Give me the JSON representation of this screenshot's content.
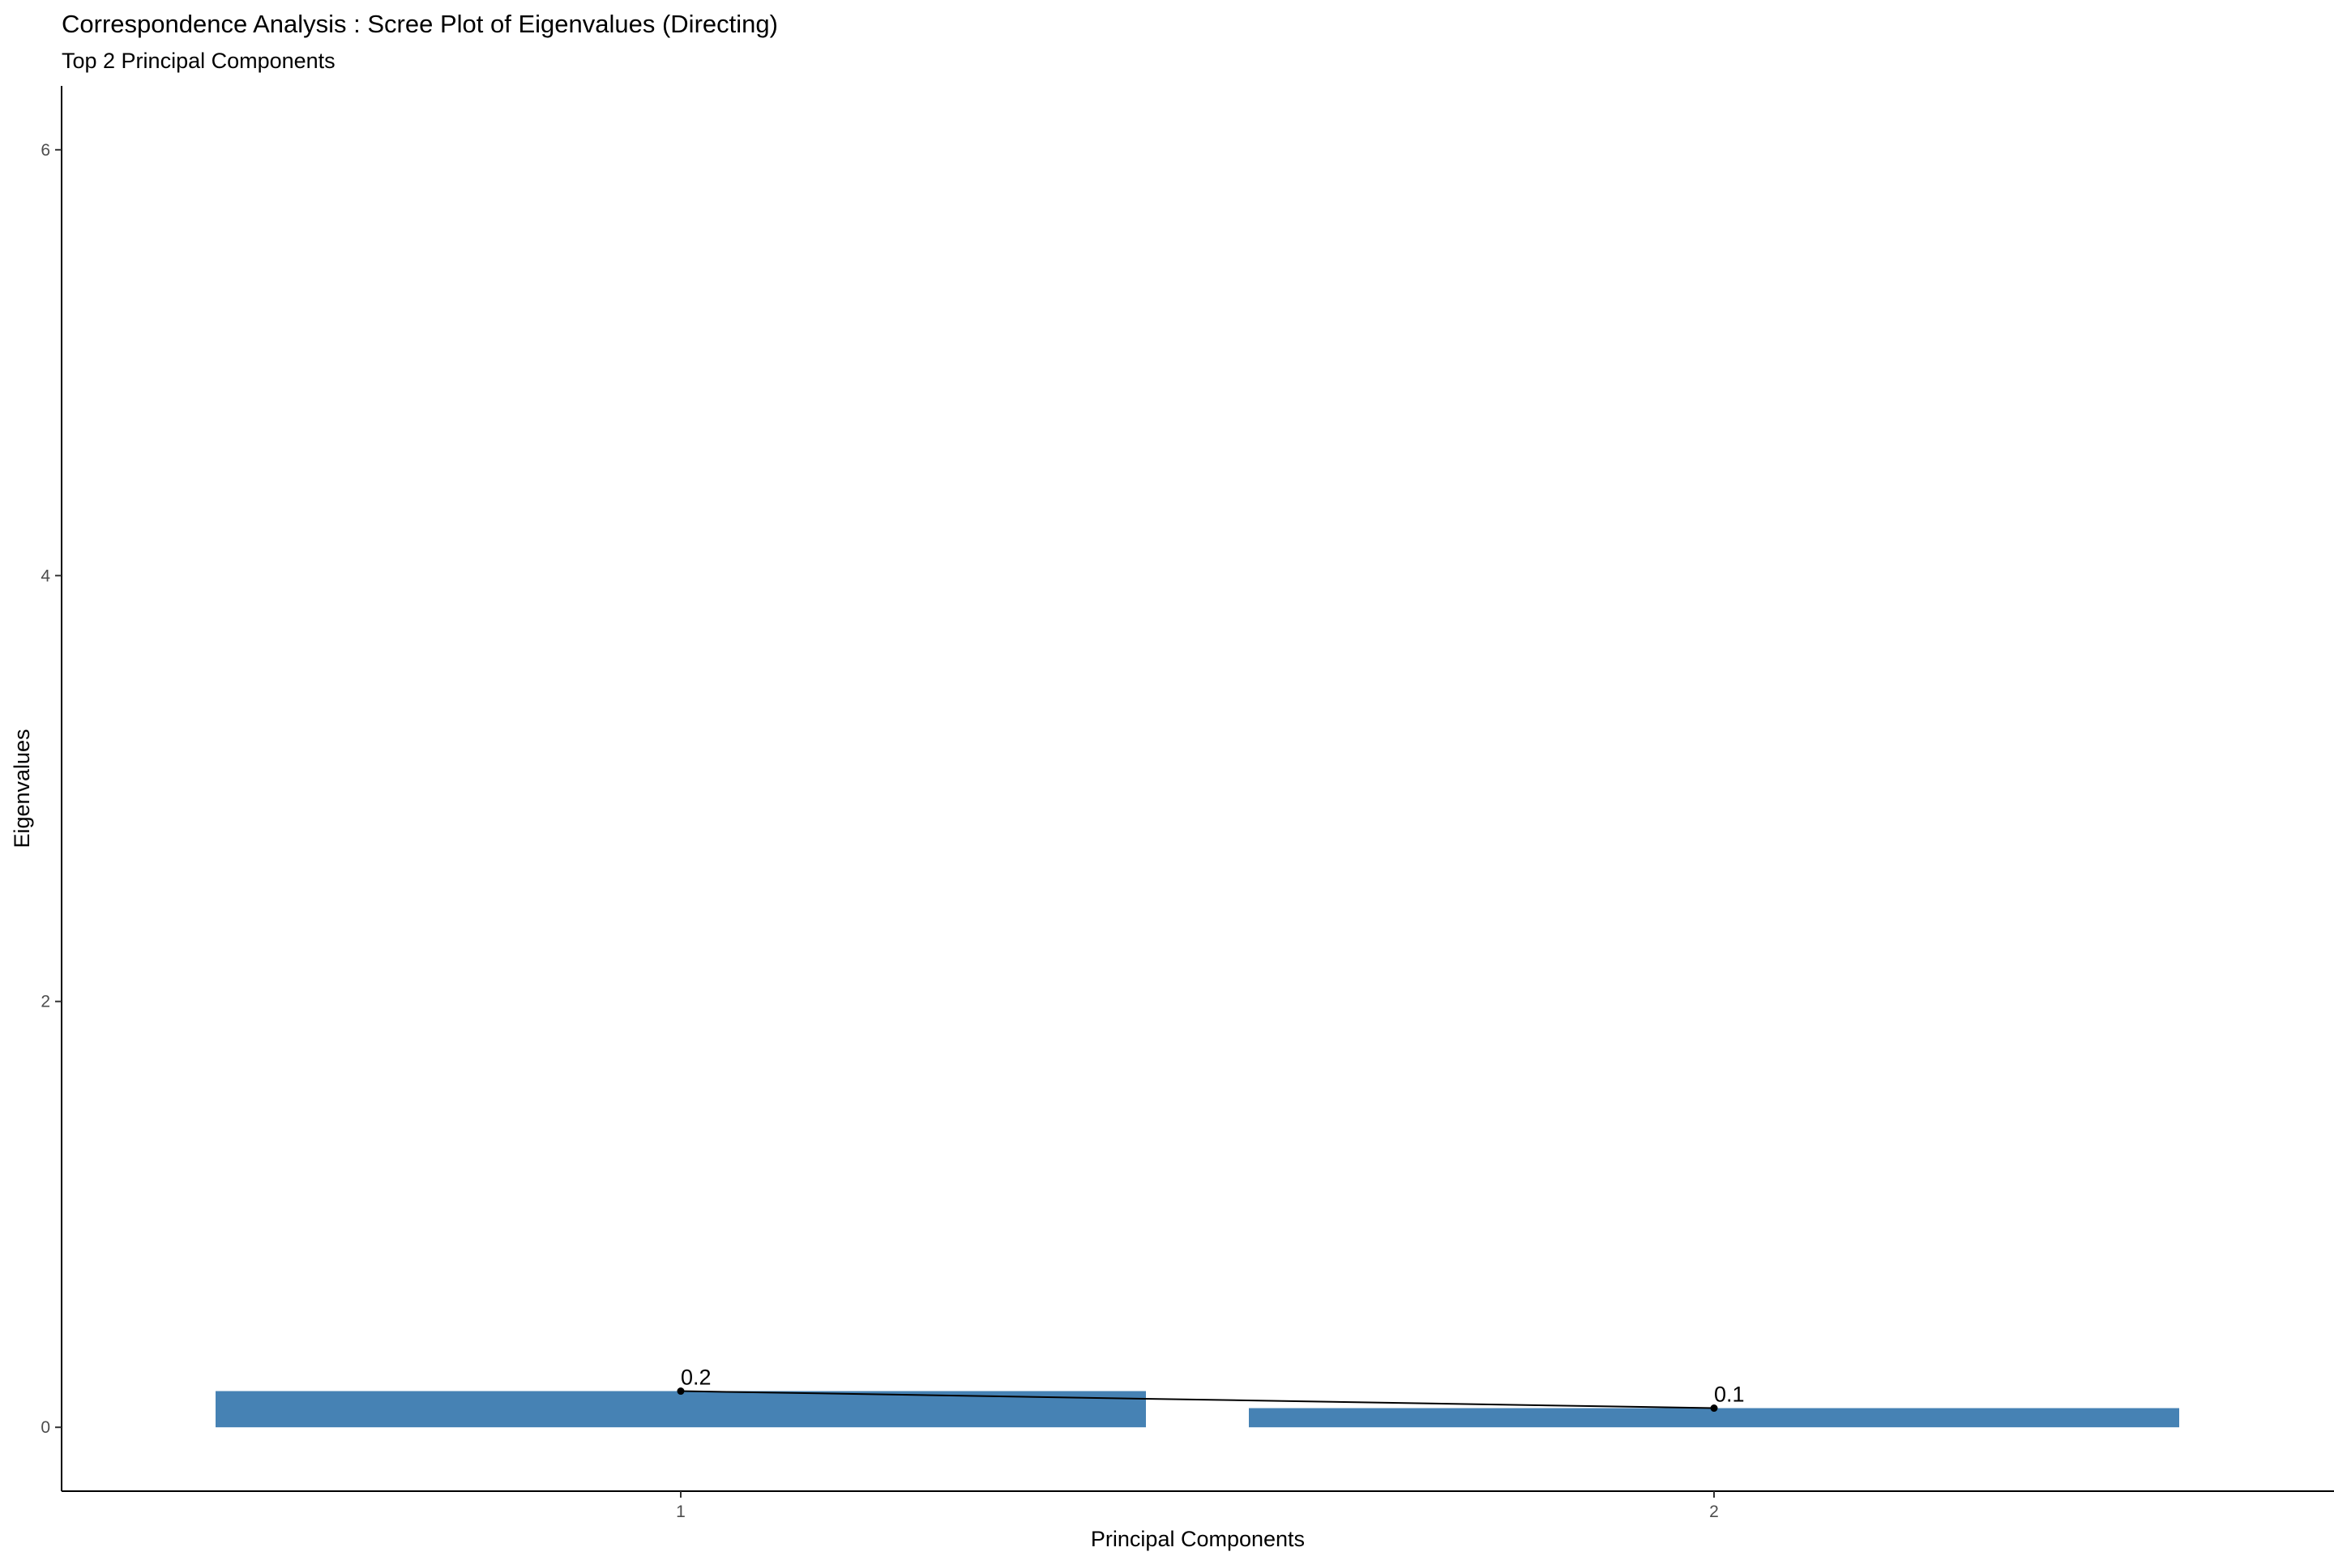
{
  "chart_data": {
    "type": "bar",
    "title": "Correspondence Analysis : Scree Plot of Eigenvalues (Directing)",
    "subtitle": "Top 2 Principal Components",
    "xlabel": "Principal Components",
    "ylabel": "Eigenvalues",
    "categories": [
      "1",
      "2"
    ],
    "values": [
      0.17,
      0.09
    ],
    "data_labels": [
      "0.2",
      "0.1"
    ],
    "line_overlay": true,
    "ylim": [
      -0.3,
      6.3
    ],
    "yticks": [
      0,
      2,
      4,
      6
    ],
    "ytick_labels": [
      "0",
      "2",
      "4",
      "6"
    ],
    "bar_color": "#4682B4",
    "line_color": "#000000",
    "grid": false,
    "legend": "none"
  }
}
